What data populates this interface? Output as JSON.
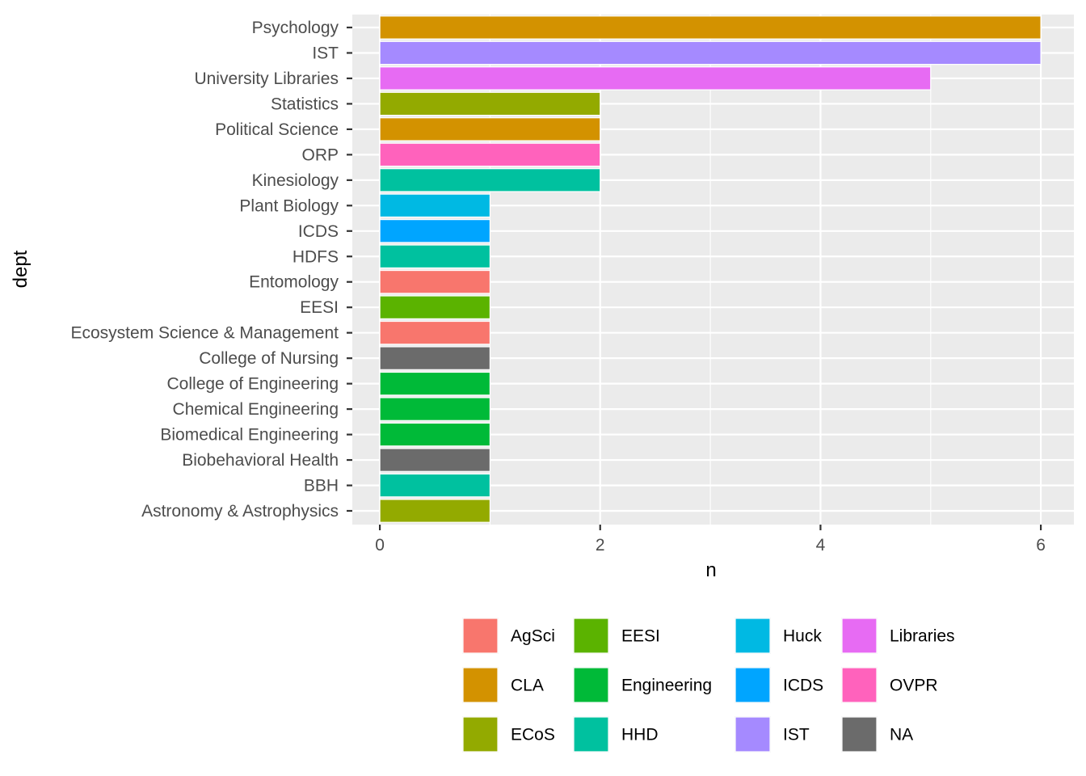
{
  "chart_data": {
    "type": "bar",
    "orientation": "horizontal",
    "xlabel": "n",
    "ylabel": "dept",
    "xlim": [
      -0.25,
      6.3
    ],
    "xticks": [
      0,
      2,
      4,
      6
    ],
    "grid": true,
    "legend_position": "bottom",
    "categories": [
      "Psychology",
      "IST",
      "University Libraries",
      "Statistics",
      "Political Science",
      "ORP",
      "Kinesiology",
      "Plant Biology",
      "ICDS",
      "HDFS",
      "Entomology",
      "EESI",
      "Ecosystem Science & Management",
      "College of Nursing",
      "College of Engineering",
      "Chemical Engineering",
      "Biomedical Engineering",
      "Biobehavioral Health",
      "BBH",
      "Astronomy & Astrophysics"
    ],
    "values": [
      6,
      6,
      5,
      2,
      2,
      2,
      2,
      1,
      1,
      1,
      1,
      1,
      1,
      1,
      1,
      1,
      1,
      1,
      1,
      1
    ],
    "groups": [
      "CLA",
      "IST",
      "Libraries",
      "ECoS",
      "CLA",
      "OVPR",
      "HHD",
      "Huck",
      "ICDS",
      "HHD",
      "AgSci",
      "EESI",
      "AgSci",
      "NA",
      "Engineering",
      "Engineering",
      "Engineering",
      "NA",
      "HHD",
      "ECoS"
    ],
    "legend": [
      {
        "name": "AgSci",
        "color": "#F8766D"
      },
      {
        "name": "CLA",
        "color": "#D39200"
      },
      {
        "name": "ECoS",
        "color": "#93AA00"
      },
      {
        "name": "EESI",
        "color": "#5BB300"
      },
      {
        "name": "Engineering",
        "color": "#00BA38"
      },
      {
        "name": "HHD",
        "color": "#00C19F"
      },
      {
        "name": "Huck",
        "color": "#00B9E3"
      },
      {
        "name": "ICDS",
        "color": "#00A5FF"
      },
      {
        "name": "IST",
        "color": "#A58AFF"
      },
      {
        "name": "Libraries",
        "color": "#E76BF3"
      },
      {
        "name": "OVPR",
        "color": "#FF62BC"
      },
      {
        "name": "NA",
        "color": "#6B6B6B"
      }
    ],
    "legend_columns": 4
  }
}
